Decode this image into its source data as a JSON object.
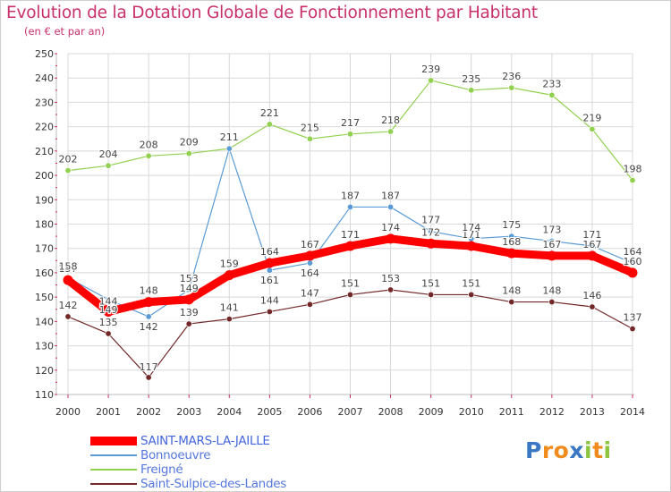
{
  "title": "Evolution de la Dotation Globale de Fonctionnement par Habitant",
  "subtitle": "(en € et par an)",
  "logo": {
    "text": "Proxiti",
    "letters": [
      "P",
      "r",
      "o",
      "x",
      "i",
      "t",
      "i"
    ],
    "colors": [
      "#3a78c4",
      "#f08c1e",
      "#f08c1e",
      "#3a78c4",
      "#8cc63f",
      "#f08c1e",
      "#8cc63f"
    ]
  },
  "colors": {
    "title": "#c8306a",
    "axis": "#333333",
    "grid": "#d8d8d8"
  },
  "chart_data": {
    "type": "line",
    "title": "Evolution de la Dotation Globale de Fonctionnement par Habitant",
    "subtitle": "(en € et par an)",
    "xlabel": "",
    "ylabel": "",
    "x": [
      "2000",
      "2001",
      "2002",
      "2003",
      "2004",
      "2005",
      "2006",
      "2007",
      "2008",
      "2009",
      "2010",
      "2011",
      "2012",
      "2013",
      "2014"
    ],
    "ylim": [
      110,
      250
    ],
    "yticks": [
      110,
      120,
      130,
      140,
      150,
      160,
      170,
      180,
      190,
      200,
      210,
      220,
      230,
      240,
      250
    ],
    "grid": true,
    "legend_position": "bottom-left",
    "series": [
      {
        "name": "SAINT-MARS-LA-JAILLE",
        "color": "#ff0000",
        "values": [
          157,
          144,
          148,
          149,
          159,
          164,
          167,
          171,
          174,
          172,
          171,
          168,
          167,
          167,
          160
        ]
      },
      {
        "name": "Bonnoeuvre",
        "color": "#5b9bd5",
        "values": [
          158,
          149,
          142,
          153,
          211,
          161,
          164,
          187,
          187,
          177,
          174,
          175,
          173,
          171,
          164
        ]
      },
      {
        "name": "Freigné",
        "color": "#92d050",
        "values": [
          202,
          204,
          208,
          209,
          211,
          221,
          215,
          217,
          218,
          239,
          235,
          236,
          233,
          219,
          198
        ]
      },
      {
        "name": "Saint-Sulpice-des-Landes",
        "color": "#722828",
        "values": [
          142,
          135,
          117,
          139,
          141,
          144,
          147,
          151,
          153,
          151,
          151,
          148,
          148,
          146,
          137
        ]
      }
    ]
  }
}
